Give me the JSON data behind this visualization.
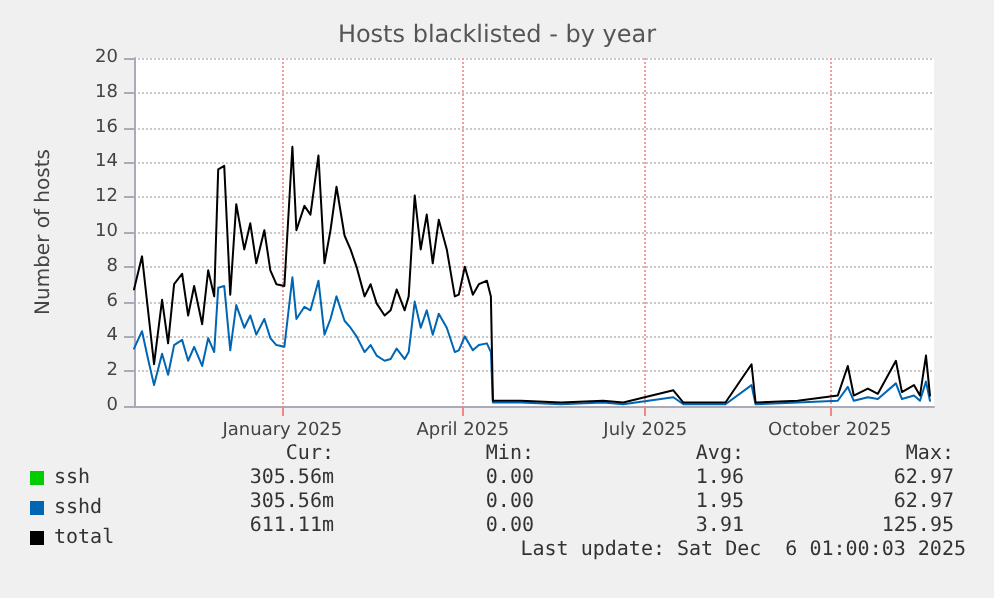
{
  "chart_data": {
    "type": "line",
    "title": "Hosts blacklisted - by year",
    "ylabel": "Number of hosts",
    "x": [
      "2024-10-19",
      "2024-10-23",
      "2024-10-26",
      "2024-10-29",
      "2024-11-02",
      "2024-11-05",
      "2024-11-08",
      "2024-11-12",
      "2024-11-15",
      "2024-11-18",
      "2024-11-22",
      "2024-11-25",
      "2024-11-28",
      "2024-11-30",
      "2024-12-03",
      "2024-12-06",
      "2024-12-09",
      "2024-12-13",
      "2024-12-16",
      "2024-12-19",
      "2024-12-23",
      "2024-12-26",
      "2024-12-29",
      "2025-01-02",
      "2025-01-06",
      "2025-01-08",
      "2025-01-12",
      "2025-01-15",
      "2025-01-19",
      "2025-01-22",
      "2025-01-25",
      "2025-01-28",
      "2025-02-01",
      "2025-02-04",
      "2025-02-07",
      "2025-02-11",
      "2025-02-14",
      "2025-02-17",
      "2025-02-21",
      "2025-02-24",
      "2025-02-27",
      "2025-03-03",
      "2025-03-05",
      "2025-03-08",
      "2025-03-11",
      "2025-03-14",
      "2025-03-17",
      "2025-03-20",
      "2025-03-24",
      "2025-03-28",
      "2025-03-30",
      "2025-04-02",
      "2025-04-06",
      "2025-04-09",
      "2025-04-13",
      "2025-04-15",
      "2025-04-16",
      "2025-04-30",
      "2025-05-20",
      "2025-06-10",
      "2025-06-20",
      "2025-07-15",
      "2025-07-20",
      "2025-08-10",
      "2025-08-23",
      "2025-08-25",
      "2025-09-15",
      "2025-10-05",
      "2025-10-10",
      "2025-10-13",
      "2025-10-20",
      "2025-10-25",
      "2025-11-03",
      "2025-11-06",
      "2025-11-12",
      "2025-11-15",
      "2025-11-18",
      "2025-11-20"
    ],
    "series": [
      {
        "name": "ssh",
        "color": "#00cc00",
        "values": [
          null,
          null,
          null,
          null,
          null,
          null,
          null,
          null,
          null,
          null,
          null,
          null,
          null,
          null,
          null,
          null,
          null,
          null,
          null,
          null,
          null,
          null,
          null,
          null,
          null,
          null,
          null,
          null,
          null,
          null,
          null,
          null,
          null,
          null,
          null,
          null,
          null,
          null,
          null,
          null,
          null,
          null,
          null,
          null,
          null,
          null,
          null,
          null,
          null,
          null,
          null,
          null,
          null,
          null,
          null,
          null,
          null,
          null,
          null,
          null,
          null,
          null,
          null,
          null,
          null,
          null,
          null,
          null,
          null,
          null,
          null,
          null,
          null,
          null,
          null,
          null,
          null,
          null
        ]
      },
      {
        "name": "sshd",
        "color": "#0066b3",
        "values": [
          3.3,
          4.3,
          2.7,
          1.2,
          3.0,
          1.8,
          3.5,
          3.8,
          2.6,
          3.4,
          2.3,
          3.9,
          3.1,
          6.8,
          6.9,
          3.2,
          5.8,
          4.5,
          5.2,
          4.1,
          5.0,
          3.9,
          3.5,
          3.4,
          7.4,
          5.0,
          5.7,
          5.5,
          7.2,
          4.1,
          5.0,
          6.3,
          4.9,
          4.5,
          4.0,
          3.1,
          3.5,
          2.9,
          2.6,
          2.7,
          3.3,
          2.7,
          3.1,
          6.0,
          4.5,
          5.5,
          4.1,
          5.3,
          4.5,
          3.1,
          3.2,
          4.0,
          3.2,
          3.5,
          3.6,
          3.1,
          0.2,
          0.2,
          0.1,
          0.2,
          0.1,
          0.5,
          0.1,
          0.1,
          1.2,
          0.1,
          0.2,
          0.3,
          1.1,
          0.3,
          0.5,
          0.4,
          1.3,
          0.4,
          0.6,
          0.3,
          1.4,
          0.3
        ]
      },
      {
        "name": "total",
        "color": "#000000",
        "values": [
          6.7,
          8.6,
          5.5,
          2.4,
          6.1,
          3.6,
          7.0,
          7.6,
          5.2,
          6.9,
          4.7,
          7.8,
          6.3,
          13.6,
          13.8,
          6.4,
          11.6,
          9.0,
          10.5,
          8.2,
          10.1,
          7.8,
          7.0,
          6.9,
          14.9,
          10.1,
          11.5,
          11.0,
          14.4,
          8.2,
          10.1,
          12.6,
          9.8,
          9.0,
          8.0,
          6.3,
          7.0,
          5.9,
          5.2,
          5.5,
          6.7,
          5.5,
          6.3,
          12.1,
          9.0,
          11.0,
          8.2,
          10.7,
          9.0,
          6.3,
          6.4,
          8.0,
          6.4,
          7.0,
          7.2,
          6.3,
          0.3,
          0.3,
          0.2,
          0.3,
          0.2,
          0.9,
          0.2,
          0.2,
          2.4,
          0.2,
          0.3,
          0.6,
          2.3,
          0.6,
          1.0,
          0.7,
          2.6,
          0.8,
          1.2,
          0.6,
          2.9,
          0.6
        ]
      }
    ],
    "xlim": [
      "2024-10-19",
      "2025-11-22"
    ],
    "xticks": [
      {
        "value": "2025-01-01",
        "label": "January 2025"
      },
      {
        "value": "2025-04-01",
        "label": "April 2025"
      },
      {
        "value": "2025-07-01",
        "label": "July 2025"
      },
      {
        "value": "2025-10-01",
        "label": "October 2025"
      }
    ],
    "ylim": [
      0,
      20
    ],
    "yticks": [
      0,
      2,
      4,
      6,
      8,
      10,
      12,
      14,
      16,
      18,
      20
    ],
    "grid": true,
    "legend": "bottom left",
    "marker": "none",
    "line_style": "solid",
    "annotations": [
      "Cur:",
      "Min:",
      "Avg:",
      "Max:",
      "305.56m",
      "0.00",
      "1.96",
      "62.97",
      "305.56m",
      "0.00",
      "1.95",
      "62.97",
      "611.11m",
      "0.00",
      "3.91",
      "125.95",
      "Last update: Sat Dec  6 01:00:03 2025"
    ]
  }
}
